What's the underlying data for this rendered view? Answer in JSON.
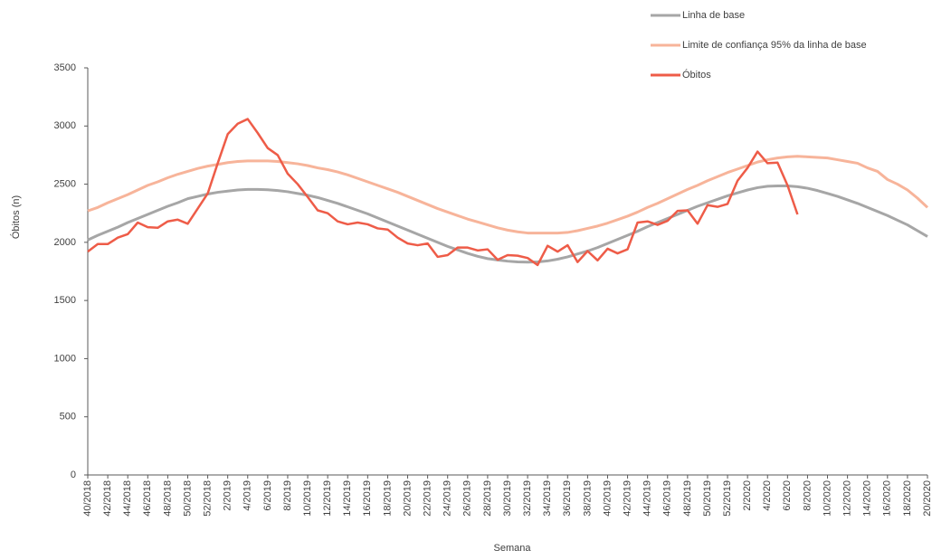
{
  "chart_data": {
    "type": "line",
    "xlabel": "Semana",
    "ylabel": "Óbitos (n)",
    "categories": [
      "40/2018",
      null,
      "42/2018",
      null,
      "44/2018",
      null,
      "46/2018",
      null,
      "48/2018",
      null,
      "50/2018",
      null,
      "52/2018",
      null,
      "2/2019",
      null,
      "4/2019",
      null,
      "6/2019",
      null,
      "8/2019",
      null,
      "10/2019",
      null,
      "12/2019",
      null,
      "14/2019",
      null,
      "16/2019",
      null,
      "18/2019",
      null,
      "20/2019",
      null,
      "22/2019",
      null,
      "24/2019",
      null,
      "26/2019",
      null,
      "28/2019",
      null,
      "30/2019",
      null,
      "32/2019",
      null,
      "34/2019",
      null,
      "36/2019",
      null,
      "38/2019",
      null,
      "40/2019",
      null,
      "42/2019",
      null,
      "44/2019",
      null,
      "46/2019",
      null,
      "48/2019",
      null,
      "50/2019",
      null,
      "52/2019",
      null,
      "2/2020",
      null,
      "4/2020",
      null,
      "6/2020",
      null,
      "8/2020",
      null,
      "10/2020",
      null,
      "12/2020",
      null,
      "14/2020",
      null,
      "16/2020",
      null,
      "18/2020",
      null,
      "20/2020"
    ],
    "series": [
      {
        "name": "Linha de base",
        "color": "#a6a6a6",
        "values": [
          2020,
          2060,
          2095,
          2130,
          2170,
          2205,
          2240,
          2275,
          2310,
          2340,
          2375,
          2395,
          2415,
          2430,
          2440,
          2450,
          2455,
          2455,
          2452,
          2445,
          2435,
          2420,
          2405,
          2385,
          2360,
          2335,
          2305,
          2275,
          2245,
          2210,
          2175,
          2140,
          2105,
          2070,
          2035,
          2000,
          1965,
          1935,
          1905,
          1880,
          1860,
          1848,
          1838,
          1832,
          1830,
          1832,
          1840,
          1855,
          1875,
          1900,
          1925,
          1955,
          1990,
          2025,
          2060,
          2095,
          2135,
          2170,
          2205,
          2240,
          2275,
          2310,
          2340,
          2370,
          2400,
          2425,
          2450,
          2470,
          2482,
          2485,
          2485,
          2478,
          2465,
          2445,
          2420,
          2395,
          2365,
          2335,
          2300,
          2265,
          2230,
          2190,
          2150,
          2100,
          2050
        ]
      },
      {
        "name": "Limite de confiança 95% da linha de base",
        "color": "#f7b49a",
        "values": [
          2270,
          2300,
          2340,
          2375,
          2410,
          2450,
          2490,
          2520,
          2555,
          2585,
          2610,
          2635,
          2655,
          2670,
          2685,
          2695,
          2700,
          2700,
          2700,
          2695,
          2685,
          2675,
          2660,
          2640,
          2625,
          2605,
          2580,
          2550,
          2520,
          2490,
          2460,
          2430,
          2395,
          2360,
          2325,
          2290,
          2260,
          2230,
          2200,
          2175,
          2150,
          2125,
          2105,
          2090,
          2080,
          2080,
          2080,
          2080,
          2085,
          2100,
          2120,
          2140,
          2165,
          2195,
          2225,
          2260,
          2300,
          2335,
          2375,
          2415,
          2455,
          2490,
          2530,
          2565,
          2600,
          2630,
          2660,
          2690,
          2710,
          2725,
          2735,
          2740,
          2735,
          2730,
          2725,
          2710,
          2695,
          2680,
          2640,
          2610,
          2540,
          2500,
          2450,
          2380,
          2300
        ]
      },
      {
        "name": "Óbitos",
        "color": "#ee5c48",
        "values": [
          1920,
          1985,
          1985,
          2040,
          2070,
          2170,
          2130,
          2125,
          2180,
          2195,
          2160,
          2290,
          2420,
          2680,
          2930,
          3020,
          3060,
          2940,
          2810,
          2750,
          2590,
          2500,
          2390,
          2275,
          2250,
          2180,
          2155,
          2170,
          2155,
          2120,
          2110,
          2040,
          1990,
          1975,
          1990,
          1875,
          1890,
          1955,
          1955,
          1930,
          1940,
          1850,
          1890,
          1885,
          1865,
          1805,
          1970,
          1920,
          1975,
          1830,
          1925,
          1845,
          1945,
          1905,
          1940,
          2170,
          2180,
          2150,
          2185,
          2270,
          2275,
          2160,
          2320,
          2305,
          2330,
          2530,
          2640,
          2780,
          2680,
          2685,
          2490,
          2240,
          null,
          null,
          null,
          null,
          null,
          null,
          null,
          null,
          null,
          null,
          null,
          null,
          null
        ]
      }
    ],
    "ylim": [
      0,
      3500
    ],
    "yticks": [
      0,
      500,
      1000,
      1500,
      2000,
      2500,
      3000,
      3500
    ],
    "grid": false,
    "legend": "top-right"
  }
}
